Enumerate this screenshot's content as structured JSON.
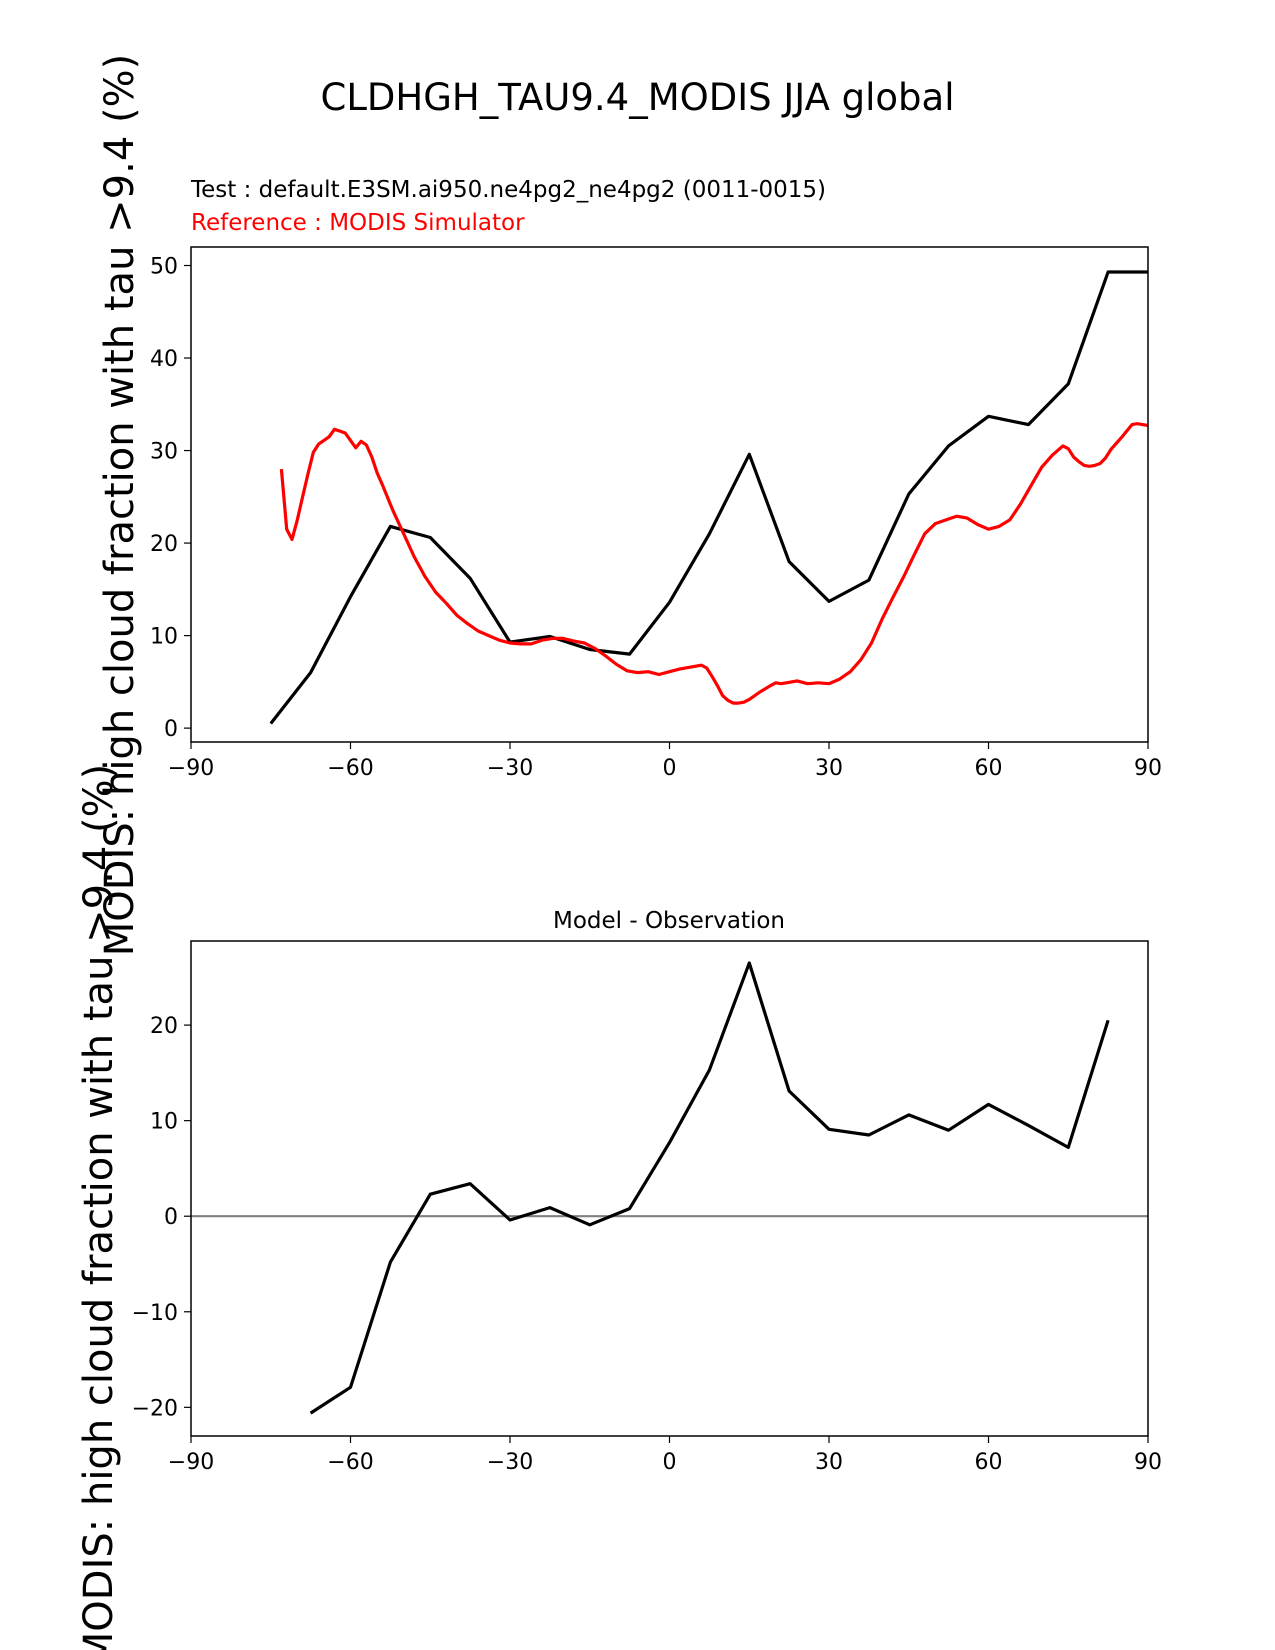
{
  "figure": {
    "suptitle": "CLDHGH_TAU9.4_MODIS JJA global",
    "test_label": "Test : default.E3SM.ai950.ne4pg2_ne4pg2 (0011-0015)",
    "reference_label": "Reference : MODIS Simulator",
    "colors": {
      "test": "#000000",
      "reference": "#ff0000",
      "zero_line": "#808080"
    }
  },
  "chart_data": [
    {
      "type": "line",
      "title": "",
      "xlabel": "",
      "ylabel": "MODIS: high cloud fraction with tau >9.4 (%)",
      "xlim": [
        -90,
        90
      ],
      "ylim": [
        -1.5,
        52
      ],
      "xticks": [
        -90,
        -60,
        -30,
        0,
        30,
        60,
        90
      ],
      "xtick_labels": [
        "−90",
        "−60",
        "−30",
        "0",
        "30",
        "60",
        "90"
      ],
      "yticks": [
        0,
        10,
        20,
        30,
        40,
        50
      ],
      "ytick_labels": [
        "0",
        "10",
        "20",
        "30",
        "40",
        "50"
      ],
      "series": [
        {
          "name": "Test",
          "x": [
            -75,
            -67.5,
            -60,
            -52.5,
            -45,
            -37.5,
            -30,
            -22.5,
            -15,
            -7.5,
            0,
            7.5,
            15,
            22.5,
            30,
            37.5,
            45,
            52.5,
            60,
            67.5,
            75,
            82.5,
            90
          ],
          "y": [
            0.5,
            6,
            14.2,
            21.8,
            20.6,
            16.2,
            9.3,
            9.9,
            8.5,
            8,
            13.6,
            21,
            29.6,
            18,
            13.7,
            16,
            25.3,
            30.5,
            33.7,
            32.8,
            37.2,
            49.3,
            49.3
          ]
        },
        {
          "name": "Reference",
          "x": [
            -73,
            -72,
            -71,
            -70,
            -69,
            -68,
            -67,
            -66,
            -65,
            -64,
            -63,
            -62,
            -61,
            -60,
            -59,
            -58,
            -57,
            -56,
            -55,
            -54,
            -52,
            -50,
            -48,
            -46,
            -44,
            -42,
            -40,
            -38,
            -36,
            -34,
            -32,
            -30,
            -28,
            -26,
            -24,
            -22,
            -20,
            -18,
            -16,
            -14,
            -12,
            -10,
            -8,
            -6,
            -4,
            -2,
            0,
            2,
            4,
            6,
            7,
            8,
            9,
            10,
            11,
            12,
            13,
            14,
            15,
            17,
            19,
            20,
            21,
            22,
            24,
            26,
            28,
            30,
            32,
            34,
            36,
            38,
            40,
            42,
            44,
            46,
            48,
            50,
            52,
            54,
            56,
            58,
            60,
            62,
            64,
            66,
            68,
            70,
            72,
            74,
            75,
            76,
            77,
            78,
            79,
            80,
            81,
            82,
            83,
            85,
            86,
            87,
            88,
            89,
            90
          ],
          "y": [
            28,
            21.5,
            20.4,
            22.5,
            25,
            27.5,
            29.8,
            30.7,
            31.1,
            31.5,
            32.3,
            32.1,
            31.9,
            31.1,
            30.3,
            31,
            30.6,
            29.3,
            27.6,
            26.3,
            23.5,
            21,
            18.5,
            16.4,
            14.7,
            13.5,
            12.2,
            11.3,
            10.5,
            10,
            9.5,
            9.2,
            9.1,
            9.1,
            9.5,
            9.7,
            9.7,
            9.4,
            9.2,
            8.6,
            7.8,
            6.9,
            6.2,
            6,
            6.1,
            5.8,
            6.1,
            6.4,
            6.6,
            6.8,
            6.5,
            5.6,
            4.6,
            3.5,
            3,
            2.7,
            2.7,
            2.8,
            3.1,
            3.9,
            4.6,
            4.9,
            4.8,
            4.9,
            5.1,
            4.8,
            4.9,
            4.8,
            5.3,
            6.1,
            7.4,
            9.2,
            11.8,
            14.1,
            16.3,
            18.7,
            21,
            22.1,
            22.5,
            22.9,
            22.7,
            22,
            21.5,
            21.8,
            22.5,
            24.2,
            26.2,
            28.2,
            29.5,
            30.5,
            30.2,
            29.3,
            28.8,
            28.4,
            28.3,
            28.4,
            28.6,
            29.2,
            30.1,
            31.4,
            32.1,
            32.8,
            32.9,
            32.8,
            32.7
          ]
        }
      ]
    },
    {
      "type": "line",
      "title": "Model - Observation",
      "xlabel": "",
      "ylabel": "MODIS: high cloud fraction with tau >9.4 (%)",
      "xlim": [
        -90,
        90
      ],
      "ylim": [
        -23,
        28.8
      ],
      "xticks": [
        -90,
        -60,
        -30,
        0,
        30,
        60,
        90
      ],
      "xtick_labels": [
        "−90",
        "−60",
        "−30",
        "0",
        "30",
        "60",
        "90"
      ],
      "yticks": [
        -20,
        -10,
        0,
        10,
        20
      ],
      "ytick_labels": [
        "−20",
        "−10",
        "0",
        "10",
        "20"
      ],
      "zero_line": 0,
      "series": [
        {
          "name": "Model - Observation",
          "x": [
            -67.5,
            -60,
            -52.5,
            -45,
            -37.5,
            -30,
            -22.5,
            -15,
            -7.5,
            0,
            7.5,
            15,
            22.5,
            30,
            37.5,
            45,
            52.5,
            60,
            67.5,
            75,
            82.5
          ],
          "y": [
            -20.6,
            -17.9,
            -4.8,
            2.3,
            3.4,
            -0.4,
            0.9,
            -0.9,
            0.8,
            7.7,
            15.3,
            26.5,
            13.1,
            9.1,
            8.5,
            10.6,
            9,
            11.7,
            9.5,
            7.2,
            20.5
          ]
        }
      ]
    }
  ]
}
